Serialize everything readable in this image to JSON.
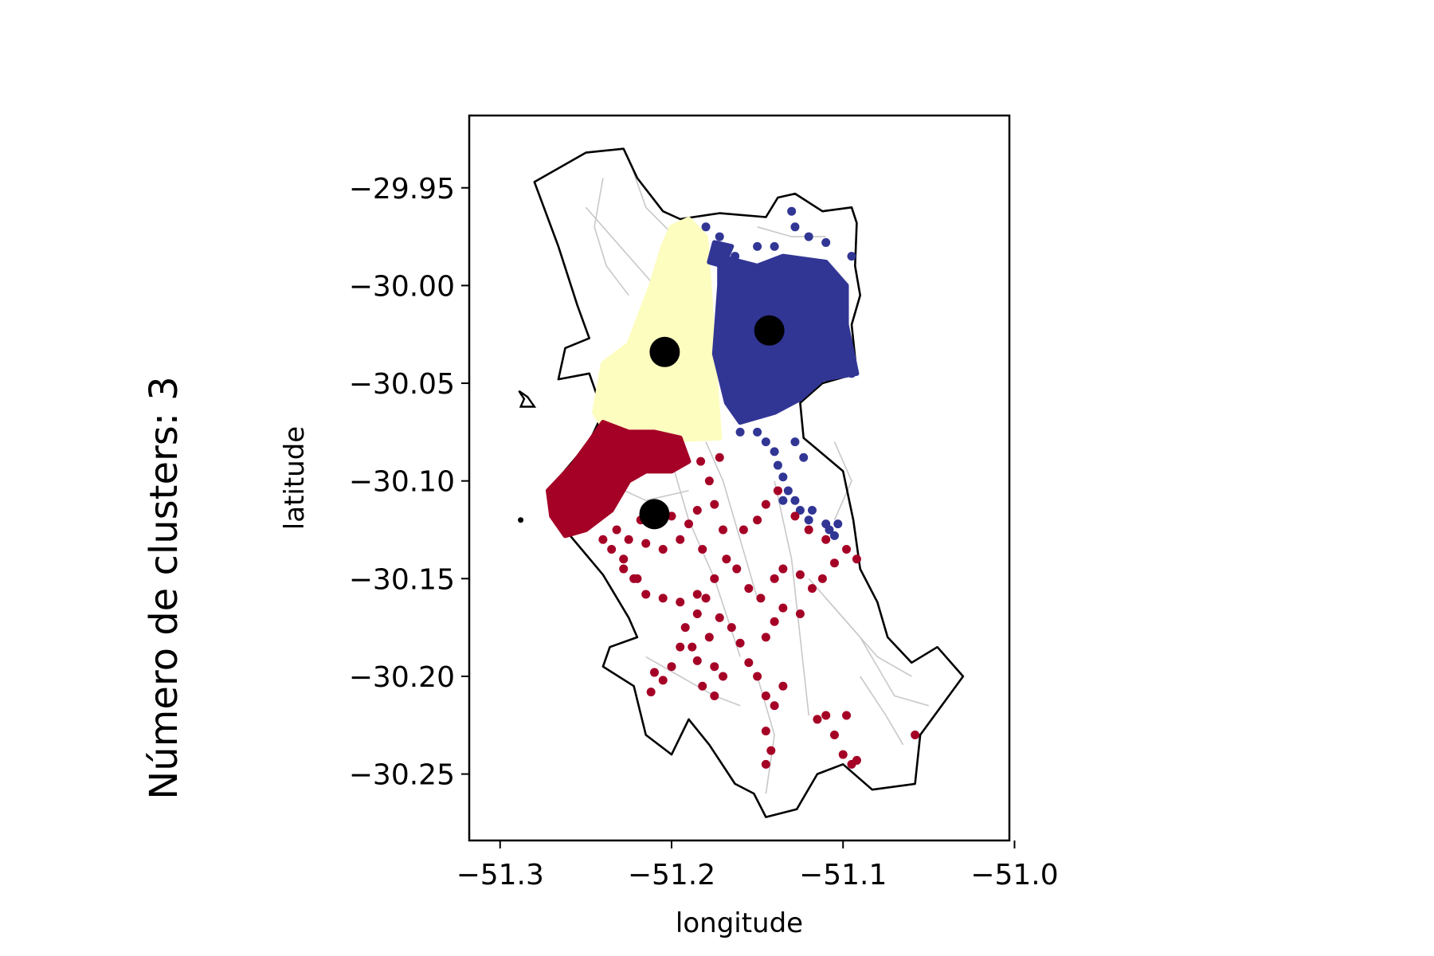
{
  "chart_data": {
    "type": "scatter",
    "title": "",
    "side_title": "Número de clusters: 3",
    "xlabel": "longitude",
    "ylabel": "latitude",
    "xlim": [
      -51.318,
      -51.003
    ],
    "ylim": [
      -30.284,
      -29.913
    ],
    "x_ticks": [
      -51.3,
      -51.2,
      -51.1,
      -51.0
    ],
    "x_tick_labels": [
      "−51.3",
      "−51.2",
      "−51.1",
      "−51.0"
    ],
    "y_ticks": [
      -29.95,
      -30.0,
      -30.05,
      -30.1,
      -30.15,
      -30.2,
      -30.25
    ],
    "y_tick_labels": [
      "−29.95",
      "−30.00",
      "−30.05",
      "−30.10",
      "−30.15",
      "−30.20",
      "−30.25"
    ],
    "grid": false,
    "legend": "none",
    "colors": {
      "boundary": "#000000",
      "streets": "#c8c8c8",
      "centroid": "#000000"
    },
    "boundary_outline": [
      [
        -51.28,
        -29.947
      ],
      [
        -51.25,
        -29.932
      ],
      [
        -51.228,
        -29.93
      ],
      [
        -51.22,
        -29.945
      ],
      [
        -51.205,
        -29.962
      ],
      [
        -51.195,
        -29.966
      ],
      [
        -51.172,
        -29.963
      ],
      [
        -51.145,
        -29.965
      ],
      [
        -51.138,
        -29.955
      ],
      [
        -51.128,
        -29.953
      ],
      [
        -51.112,
        -29.962
      ],
      [
        -51.095,
        -29.96
      ],
      [
        -51.092,
        -29.968
      ],
      [
        -51.093,
        -29.99
      ],
      [
        -51.09,
        -30.005
      ],
      [
        -51.095,
        -30.02
      ],
      [
        -51.092,
        -30.045
      ],
      [
        -51.112,
        -30.05
      ],
      [
        -51.125,
        -30.06
      ],
      [
        -51.123,
        -30.078
      ],
      [
        -51.1,
        -30.095
      ],
      [
        -51.094,
        -30.12
      ],
      [
        -51.09,
        -30.145
      ],
      [
        -51.08,
        -30.162
      ],
      [
        -51.074,
        -30.18
      ],
      [
        -51.06,
        -30.193
      ],
      [
        -51.045,
        -30.185
      ],
      [
        -51.03,
        -30.2
      ],
      [
        -51.055,
        -30.23
      ],
      [
        -51.058,
        -30.255
      ],
      [
        -51.083,
        -30.258
      ],
      [
        -51.1,
        -30.245
      ],
      [
        -51.115,
        -30.25
      ],
      [
        -51.127,
        -30.268
      ],
      [
        -51.145,
        -30.272
      ],
      [
        -51.152,
        -30.26
      ],
      [
        -51.163,
        -30.255
      ],
      [
        -51.178,
        -30.235
      ],
      [
        -51.19,
        -30.222
      ],
      [
        -51.2,
        -30.24
      ],
      [
        -51.215,
        -30.23
      ],
      [
        -51.222,
        -30.205
      ],
      [
        -51.24,
        -30.195
      ],
      [
        -51.236,
        -30.185
      ],
      [
        -51.22,
        -30.18
      ],
      [
        -51.225,
        -30.17
      ],
      [
        -51.24,
        -30.148
      ],
      [
        -51.262,
        -30.125
      ],
      [
        -51.272,
        -30.105
      ],
      [
        -51.248,
        -30.08
      ],
      [
        -51.24,
        -30.065
      ],
      [
        -51.248,
        -30.045
      ],
      [
        -51.266,
        -30.048
      ],
      [
        -51.262,
        -30.032
      ],
      [
        -51.248,
        -30.027
      ],
      [
        -51.255,
        -30.01
      ],
      [
        -51.266,
        -29.98
      ],
      [
        -51.28,
        -29.947
      ]
    ],
    "island_outline": [
      [
        -51.289,
        -30.054
      ],
      [
        -51.284,
        -30.057
      ],
      [
        -51.28,
        -30.062
      ],
      [
        -51.288,
        -30.062
      ],
      [
        -51.286,
        -30.058
      ],
      [
        -51.289,
        -30.054
      ]
    ],
    "point_marker": [
      -51.288,
      -30.12
    ],
    "streets": [
      [
        [
          -51.225,
          -29.935
        ],
        [
          -51.215,
          -29.96
        ],
        [
          -51.198,
          -29.975
        ],
        [
          -51.178,
          -29.985
        ]
      ],
      [
        [
          -51.25,
          -29.96
        ],
        [
          -51.23,
          -29.98
        ],
        [
          -51.21,
          -30.0
        ],
        [
          -51.19,
          -30.02
        ]
      ],
      [
        [
          -51.16,
          -29.99
        ],
        [
          -51.14,
          -30.0
        ],
        [
          -51.12,
          -30.005
        ],
        [
          -51.1,
          -30.01
        ]
      ],
      [
        [
          -51.15,
          -29.97
        ],
        [
          -51.13,
          -29.975
        ],
        [
          -51.11,
          -29.975
        ]
      ],
      [
        [
          -51.18,
          -30.08
        ],
        [
          -51.17,
          -30.1
        ],
        [
          -51.16,
          -30.13
        ],
        [
          -51.15,
          -30.16
        ]
      ],
      [
        [
          -51.2,
          -30.09
        ],
        [
          -51.19,
          -30.12
        ],
        [
          -51.175,
          -30.15
        ],
        [
          -51.16,
          -30.19
        ]
      ],
      [
        [
          -51.14,
          -30.1
        ],
        [
          -51.13,
          -30.14
        ],
        [
          -51.125,
          -30.18
        ],
        [
          -51.12,
          -30.22
        ]
      ],
      [
        [
          -51.12,
          -30.15
        ],
        [
          -51.1,
          -30.17
        ],
        [
          -51.08,
          -30.19
        ],
        [
          -51.06,
          -30.2
        ]
      ],
      [
        [
          -51.09,
          -30.2
        ],
        [
          -51.075,
          -30.22
        ],
        [
          -51.065,
          -30.235
        ]
      ],
      [
        [
          -51.15,
          -30.2
        ],
        [
          -51.14,
          -30.23
        ],
        [
          -51.145,
          -30.26
        ]
      ],
      [
        [
          -51.215,
          -30.19
        ],
        [
          -51.195,
          -30.2
        ],
        [
          -51.175,
          -30.21
        ],
        [
          -51.16,
          -30.215
        ]
      ],
      [
        [
          -51.24,
          -30.1
        ],
        [
          -51.215,
          -30.11
        ],
        [
          -51.19,
          -30.105
        ]
      ],
      [
        [
          -51.105,
          -30.08
        ],
        [
          -51.095,
          -30.1
        ],
        [
          -51.105,
          -30.12
        ]
      ],
      [
        [
          -51.17,
          -30.03
        ],
        [
          -51.15,
          -30.045
        ],
        [
          -51.13,
          -30.06
        ]
      ],
      [
        [
          -51.24,
          -29.945
        ],
        [
          -51.245,
          -29.97
        ],
        [
          -51.238,
          -29.99
        ],
        [
          -51.225,
          -30.005
        ]
      ],
      [
        [
          -51.11,
          -30.16
        ],
        [
          -51.09,
          -30.18
        ],
        [
          -51.07,
          -30.21
        ],
        [
          -51.05,
          -30.215
        ]
      ]
    ],
    "series": [
      {
        "color": "#fdfdc0",
        "regions": [
          [
            [
              -51.19,
              -29.966
            ],
            [
              -51.18,
              -29.975
            ],
            [
              -51.178,
              -30.0
            ],
            [
              -51.175,
              -30.04
            ],
            [
              -51.172,
              -30.078
            ],
            [
              -51.222,
              -30.08
            ],
            [
              -51.238,
              -30.075
            ],
            [
              -51.245,
              -30.065
            ],
            [
              -51.24,
              -30.04
            ],
            [
              -51.225,
              -30.03
            ],
            [
              -51.212,
              -30.0
            ],
            [
              -51.205,
              -29.98
            ],
            [
              -51.2,
              -29.97
            ]
          ]
        ],
        "points": []
      },
      {
        "color": "#313695",
        "regions": [
          [
            [
              -51.172,
              -29.985
            ],
            [
              -51.15,
              -29.99
            ],
            [
              -51.135,
              -29.985
            ],
            [
              -51.11,
              -29.988
            ],
            [
              -51.098,
              -30.0
            ],
            [
              -51.098,
              -30.02
            ],
            [
              -51.092,
              -30.045
            ],
            [
              -51.112,
              -30.048
            ],
            [
              -51.125,
              -30.058
            ],
            [
              -51.14,
              -30.065
            ],
            [
              -51.16,
              -30.07
            ],
            [
              -51.168,
              -30.06
            ],
            [
              -51.175,
              -30.035
            ],
            [
              -51.172,
              -30.0
            ]
          ],
          [
            [
              -51.178,
              -29.988
            ],
            [
              -51.17,
              -29.99
            ],
            [
              -51.165,
              -29.98
            ],
            [
              -51.175,
              -29.978
            ]
          ]
        ],
        "points": [
          [
            -51.13,
            -29.962
          ],
          [
            -51.128,
            -29.97
          ],
          [
            -51.12,
            -29.975
          ],
          [
            -51.11,
            -29.978
          ],
          [
            -51.095,
            -29.985
          ],
          [
            -51.18,
            -29.97
          ],
          [
            -51.172,
            -29.975
          ],
          [
            -51.163,
            -29.985
          ],
          [
            -51.15,
            -29.98
          ],
          [
            -51.14,
            -29.98
          ],
          [
            -51.125,
            -29.99
          ],
          [
            -51.13,
            -29.998
          ],
          [
            -51.115,
            -30.01
          ],
          [
            -51.16,
            -30.075
          ],
          [
            -51.15,
            -30.075
          ],
          [
            -51.145,
            -30.08
          ],
          [
            -51.14,
            -30.085
          ],
          [
            -51.138,
            -30.092
          ],
          [
            -51.135,
            -30.098
          ],
          [
            -51.132,
            -30.105
          ],
          [
            -51.128,
            -30.11
          ],
          [
            -51.125,
            -30.115
          ],
          [
            -51.12,
            -30.12
          ],
          [
            -51.11,
            -30.122
          ],
          [
            -51.108,
            -30.125
          ],
          [
            -51.105,
            -30.128
          ],
          [
            -51.128,
            -30.08
          ],
          [
            -51.123,
            -30.088
          ],
          [
            -51.135,
            -30.11
          ],
          [
            -51.118,
            -30.115
          ],
          [
            -51.103,
            -30.122
          ],
          [
            -51.095,
            -30.045
          ],
          [
            -51.102,
            -30.04
          ]
        ]
      },
      {
        "color": "#a50026",
        "regions": [
          [
            [
              -51.24,
              -30.07
            ],
            [
              -51.225,
              -30.075
            ],
            [
              -51.21,
              -30.075
            ],
            [
              -51.195,
              -30.078
            ],
            [
              -51.19,
              -30.09
            ],
            [
              -51.2,
              -30.095
            ],
            [
              -51.215,
              -30.095
            ],
            [
              -51.225,
              -30.1
            ],
            [
              -51.235,
              -30.115
            ],
            [
              -51.25,
              -30.125
            ],
            [
              -51.262,
              -30.128
            ],
            [
              -51.27,
              -30.118
            ],
            [
              -51.272,
              -30.105
            ],
            [
              -51.258,
              -30.092
            ],
            [
              -51.248,
              -30.08
            ]
          ]
        ],
        "points": [
          [
            -51.232,
            -30.125
          ],
          [
            -51.225,
            -30.13
          ],
          [
            -51.215,
            -30.132
          ],
          [
            -51.205,
            -30.135
          ],
          [
            -51.195,
            -30.13
          ],
          [
            -51.185,
            -30.115
          ],
          [
            -51.178,
            -30.1
          ],
          [
            -51.172,
            -30.088
          ],
          [
            -51.183,
            -30.09
          ],
          [
            -51.175,
            -30.112
          ],
          [
            -51.17,
            -30.125
          ],
          [
            -51.168,
            -30.14
          ],
          [
            -51.175,
            -30.15
          ],
          [
            -51.185,
            -30.158
          ],
          [
            -51.195,
            -30.162
          ],
          [
            -51.205,
            -30.16
          ],
          [
            -51.215,
            -30.158
          ],
          [
            -51.222,
            -30.15
          ],
          [
            -51.228,
            -30.14
          ],
          [
            -51.218,
            -30.12
          ],
          [
            -51.2,
            -30.118
          ],
          [
            -51.19,
            -30.122
          ],
          [
            -51.182,
            -30.135
          ],
          [
            -51.162,
            -30.145
          ],
          [
            -51.155,
            -30.155
          ],
          [
            -51.148,
            -30.16
          ],
          [
            -51.14,
            -30.15
          ],
          [
            -51.135,
            -30.145
          ],
          [
            -51.125,
            -30.148
          ],
          [
            -51.118,
            -30.155
          ],
          [
            -51.112,
            -30.15
          ],
          [
            -51.105,
            -30.142
          ],
          [
            -51.098,
            -30.135
          ],
          [
            -51.092,
            -30.14
          ],
          [
            -51.138,
            -30.105
          ],
          [
            -51.145,
            -30.112
          ],
          [
            -51.15,
            -30.12
          ],
          [
            -51.158,
            -30.125
          ],
          [
            -51.128,
            -30.118
          ],
          [
            -51.12,
            -30.125
          ],
          [
            -51.11,
            -30.13
          ],
          [
            -51.192,
            -30.175
          ],
          [
            -51.188,
            -30.185
          ],
          [
            -51.185,
            -30.192
          ],
          [
            -51.178,
            -30.18
          ],
          [
            -51.172,
            -30.17
          ],
          [
            -51.165,
            -30.175
          ],
          [
            -51.16,
            -30.183
          ],
          [
            -51.155,
            -30.193
          ],
          [
            -51.15,
            -30.2
          ],
          [
            -51.145,
            -30.21
          ],
          [
            -51.14,
            -30.215
          ],
          [
            -51.135,
            -30.205
          ],
          [
            -51.145,
            -30.18
          ],
          [
            -51.14,
            -30.172
          ],
          [
            -51.135,
            -30.165
          ],
          [
            -51.125,
            -30.168
          ],
          [
            -51.17,
            -30.2
          ],
          [
            -51.175,
            -30.21
          ],
          [
            -51.182,
            -30.205
          ],
          [
            -51.2,
            -30.195
          ],
          [
            -51.205,
            -30.202
          ],
          [
            -51.212,
            -30.208
          ],
          [
            -51.21,
            -30.198
          ],
          [
            -51.195,
            -30.185
          ],
          [
            -51.185,
            -30.168
          ],
          [
            -51.18,
            -30.16
          ],
          [
            -51.175,
            -30.195
          ],
          [
            -51.145,
            -30.228
          ],
          [
            -51.142,
            -30.238
          ],
          [
            -51.145,
            -30.245
          ],
          [
            -51.115,
            -30.222
          ],
          [
            -51.105,
            -30.23
          ],
          [
            -51.1,
            -30.24
          ],
          [
            -51.095,
            -30.245
          ],
          [
            -51.092,
            -30.243
          ],
          [
            -51.11,
            -30.22
          ],
          [
            -51.098,
            -30.22
          ],
          [
            -51.058,
            -30.23
          ],
          [
            -51.248,
            -30.1
          ],
          [
            -51.255,
            -30.108
          ],
          [
            -51.262,
            -30.118
          ],
          [
            -51.24,
            -30.13
          ],
          [
            -51.235,
            -30.135
          ],
          [
            -51.228,
            -30.145
          ],
          [
            -51.22,
            -30.15
          ]
        ]
      }
    ],
    "centroids": [
      {
        "x": -51.204,
        "y": -30.034
      },
      {
        "x": -51.143,
        "y": -30.023
      },
      {
        "x": -51.21,
        "y": -30.117
      }
    ]
  }
}
